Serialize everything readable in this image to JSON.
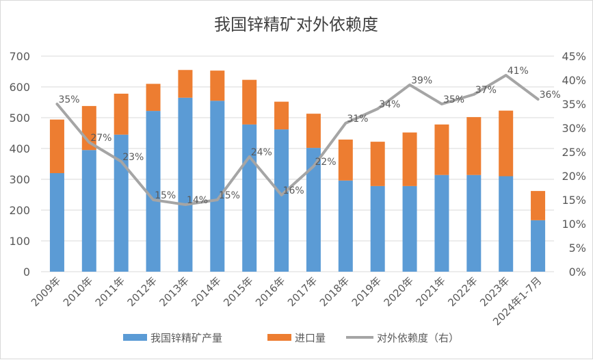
{
  "chart_data": {
    "type": "bar",
    "title": "我国锌精矿对外依赖度",
    "categories": [
      "2009年",
      "2010年",
      "2011年",
      "2012年",
      "2013年",
      "2014年",
      "2015年",
      "2016年",
      "2017年",
      "2018年",
      "2019年",
      "2020年",
      "2021年",
      "2022年",
      "2023年",
      "2024年1-7月"
    ],
    "series": [
      {
        "name": "我国锌精矿产量",
        "kind": "bar",
        "axis": "left",
        "stack": "s",
        "color": "#5b9bd5",
        "values": [
          320,
          395,
          445,
          522,
          565,
          555,
          478,
          462,
          402,
          296,
          278,
          278,
          314,
          314,
          310,
          167
        ]
      },
      {
        "name": "进口量",
        "kind": "bar",
        "axis": "left",
        "stack": "s",
        "color": "#ed7d31",
        "values": [
          174,
          143,
          133,
          88,
          90,
          98,
          145,
          90,
          111,
          133,
          144,
          174,
          164,
          188,
          213,
          95
        ]
      },
      {
        "name": "对外依赖度（右）",
        "kind": "line",
        "axis": "right",
        "color": "#a5a5a5",
        "values": [
          35,
          27,
          23,
          15,
          14,
          15,
          24,
          16,
          22,
          31,
          34,
          39,
          35,
          37,
          41,
          36
        ]
      }
    ],
    "data_labels": [
      "35%",
      "27%",
      "23%",
      "15%",
      "14%",
      "15%",
      "24%",
      "16%",
      "22%",
      "31%",
      "34%",
      "39%",
      "35%",
      "37%",
      "41%",
      "36%"
    ],
    "ylim_left": [
      0,
      700
    ],
    "yticks_left": [
      "0",
      "100",
      "200",
      "300",
      "400",
      "500",
      "600",
      "700"
    ],
    "ylim_right": [
      0,
      45
    ],
    "yticks_right": [
      "0%",
      "5%",
      "10%",
      "15%",
      "20%",
      "25%",
      "30%",
      "35%",
      "40%",
      "45%"
    ],
    "xlabel": "",
    "ylabel": "",
    "grid": true,
    "legend": "bottom"
  }
}
